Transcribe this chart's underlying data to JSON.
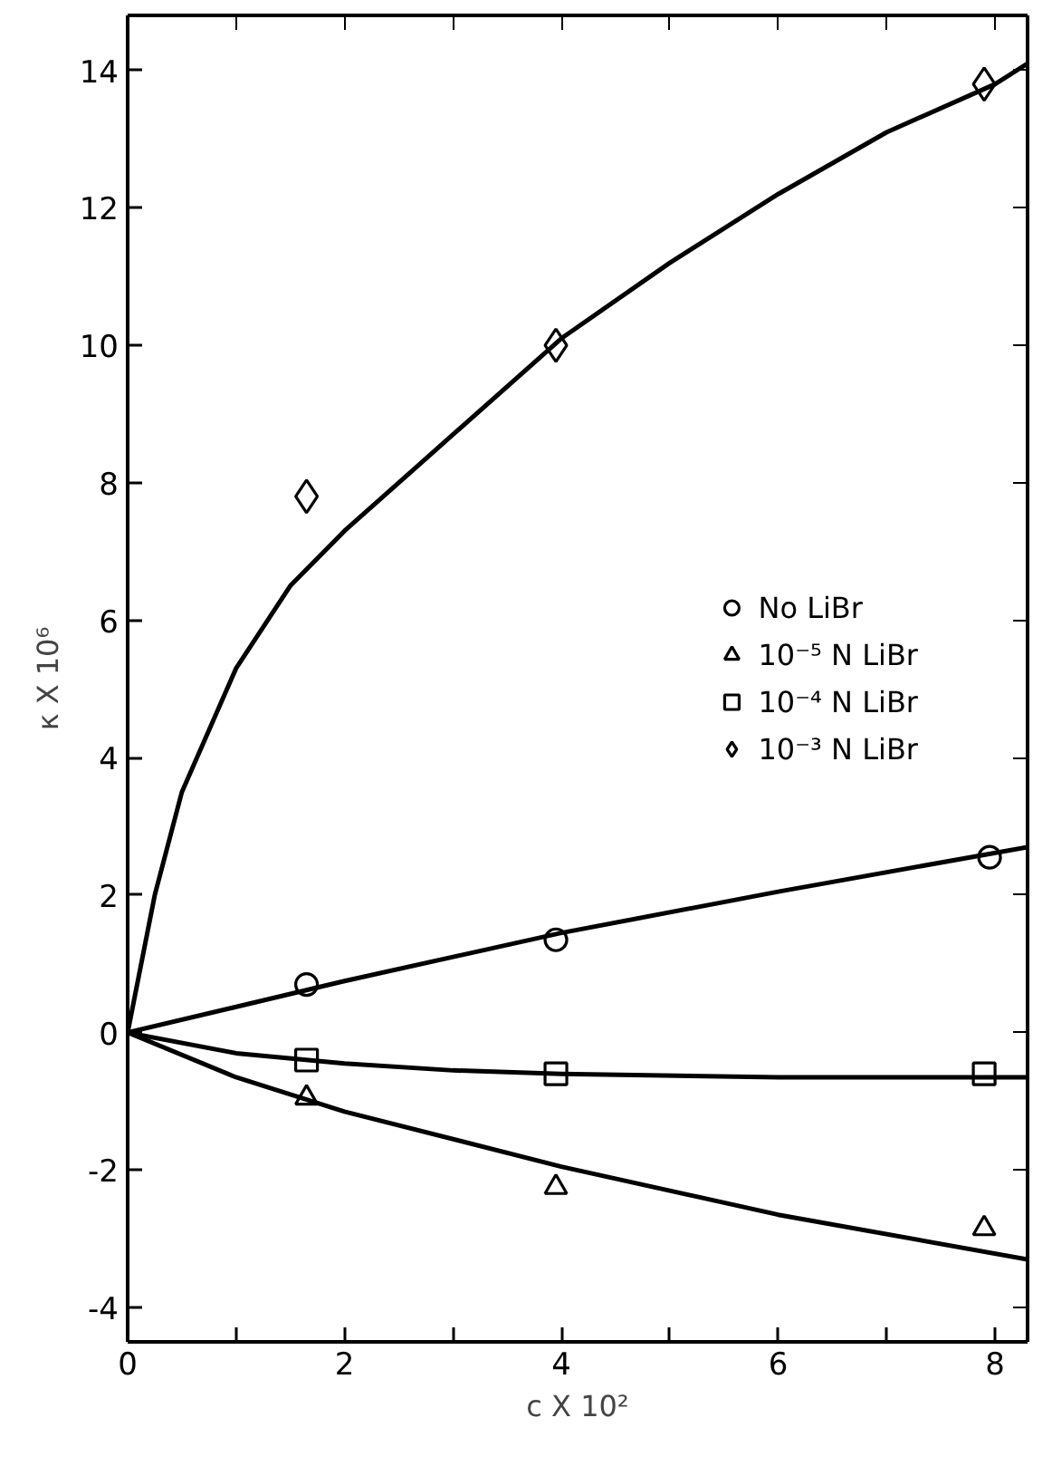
{
  "chart_data": {
    "type": "scatter",
    "xlabel": "c X 10²",
    "ylabel": "κ X 10⁶",
    "xlim": [
      0,
      8.3
    ],
    "ylim": [
      -4.5,
      14.8
    ],
    "xticks": [
      0,
      {
        "value": 1,
        "label": null
      },
      2,
      {
        "value": 3,
        "label": null
      },
      4,
      {
        "value": 5,
        "label": null
      },
      6,
      {
        "value": 7,
        "label": null
      },
      8
    ],
    "yticks": [
      -4,
      -2,
      0,
      2,
      4,
      6,
      8,
      10,
      12,
      14
    ],
    "grid": false,
    "legend": "right",
    "series": [
      {
        "name": "No LiBr",
        "marker": "circle",
        "color": "#000000",
        "x": [
          1.65,
          3.95,
          7.95
        ],
        "values": [
          0.7,
          1.35,
          2.55
        ]
      },
      {
        "name": "10⁻⁵ N LiBr",
        "marker": "triangle",
        "color": "#000000",
        "x": [
          1.65,
          3.95,
          7.9
        ],
        "values": [
          -0.95,
          -2.25,
          -2.85
        ]
      },
      {
        "name": "10⁻⁴ N LiBr",
        "marker": "square",
        "color": "#000000",
        "x": [
          1.65,
          3.95,
          7.9
        ],
        "values": [
          -0.4,
          -0.6,
          -0.6
        ]
      },
      {
        "name": "10⁻³ N LiBr",
        "marker": "diamond",
        "color": "#000000",
        "x": [
          1.65,
          3.95,
          7.9
        ],
        "values": [
          7.8,
          10.0,
          13.8
        ]
      },
      {
        "type": "line",
        "color": "#000000",
        "x": [
          0,
          2,
          4,
          6,
          8.3
        ],
        "values": [
          0,
          0.75,
          1.45,
          2.05,
          2.7
        ]
      },
      {
        "type": "line",
        "color": "#000000",
        "x": [
          0,
          1,
          2,
          4,
          6,
          8.3
        ],
        "values": [
          0,
          -0.65,
          -1.15,
          -1.95,
          -2.65,
          -3.3
        ]
      },
      {
        "type": "line",
        "color": "#000000",
        "x": [
          0,
          1,
          2,
          3,
          4,
          6,
          8.3
        ],
        "values": [
          0,
          -0.3,
          -0.45,
          -0.55,
          -0.6,
          -0.65,
          -0.65
        ]
      },
      {
        "type": "line",
        "color": "#000000",
        "x": [
          0,
          0.25,
          0.5,
          1,
          1.5,
          2,
          3,
          4,
          5,
          6,
          7,
          8,
          8.3
        ],
        "values": [
          0,
          2,
          3.5,
          5.3,
          6.5,
          7.3,
          8.7,
          10.1,
          11.2,
          12.2,
          13.1,
          13.8,
          14.1
        ]
      }
    ]
  }
}
